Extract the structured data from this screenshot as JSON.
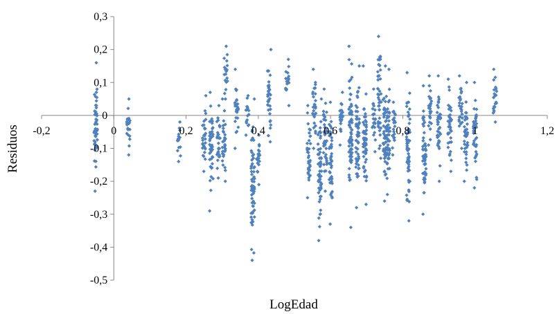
{
  "chart_data": {
    "type": "scatter",
    "title": "",
    "xlabel": "LogEdad",
    "ylabel": "Residuos",
    "xlim": [
      -0.2,
      1.2
    ],
    "ylim": [
      -0.5,
      0.3
    ],
    "x_ticks": [
      -0.2,
      0,
      0.2,
      0.4,
      0.6,
      0.8,
      1,
      1.2
    ],
    "x_tick_labels": [
      "-0,2",
      "0",
      "0,2",
      "0,4",
      "0,6",
      "0,8",
      "1",
      "1,2"
    ],
    "y_ticks": [
      0.3,
      0.2,
      0.1,
      0,
      -0.1,
      -0.2,
      -0.3,
      -0.4,
      -0.5
    ],
    "y_tick_labels": [
      "0,3",
      "0,2",
      "0,1",
      "0",
      "-0,1",
      "-0,2",
      "-0,3",
      "-0,4",
      "-0,5"
    ],
    "grid": false,
    "legend": "none",
    "marker": "diamond",
    "marker_color": "#4F81BD",
    "clusters": [
      {
        "x": -0.05,
        "ymin": -0.23,
        "ymax": 0.16
      },
      {
        "x": 0.04,
        "ymin": -0.12,
        "ymax": 0.05
      },
      {
        "x": 0.18,
        "ymin": -0.14,
        "ymax": -0.02
      },
      {
        "x": 0.25,
        "ymin": -0.17,
        "ymax": 0.06
      },
      {
        "x": 0.27,
        "ymin": -0.29,
        "ymax": 0.07
      },
      {
        "x": 0.29,
        "ymin": -0.19,
        "ymax": 0.03
      },
      {
        "x": 0.305,
        "ymin": -0.2,
        "ymax": 0.05
      },
      {
        "x": 0.31,
        "ymin": 0.05,
        "ymax": 0.21
      },
      {
        "x": 0.34,
        "ymin": -0.1,
        "ymax": 0.14
      },
      {
        "x": 0.37,
        "ymin": -0.06,
        "ymax": 0.06
      },
      {
        "x": 0.385,
        "ymin": -0.44,
        "ymax": 0.05
      },
      {
        "x": 0.4,
        "ymin": -0.21,
        "ymax": -0.06
      },
      {
        "x": 0.43,
        "ymin": -0.08,
        "ymax": 0.2
      },
      {
        "x": 0.48,
        "ymin": 0.03,
        "ymax": 0.17
      },
      {
        "x": 0.54,
        "ymin": -0.25,
        "ymax": 0.03
      },
      {
        "x": 0.555,
        "ymin": -0.1,
        "ymax": 0.14
      },
      {
        "x": 0.57,
        "ymin": -0.38,
        "ymax": 0.05
      },
      {
        "x": 0.585,
        "ymin": -0.23,
        "ymax": 0.08
      },
      {
        "x": 0.6,
        "ymin": -0.33,
        "ymax": 0.04
      },
      {
        "x": 0.63,
        "ymin": -0.09,
        "ymax": 0.07
      },
      {
        "x": 0.655,
        "ymin": -0.34,
        "ymax": 0.21
      },
      {
        "x": 0.675,
        "ymin": -0.28,
        "ymax": 0.15
      },
      {
        "x": 0.695,
        "ymin": -0.27,
        "ymax": 0.15
      },
      {
        "x": 0.72,
        "ymin": -0.11,
        "ymax": 0.08
      },
      {
        "x": 0.735,
        "ymin": -0.13,
        "ymax": 0.24
      },
      {
        "x": 0.75,
        "ymin": -0.26,
        "ymax": 0.15
      },
      {
        "x": 0.76,
        "ymin": -0.24,
        "ymax": 0.14
      },
      {
        "x": 0.775,
        "ymin": -0.12,
        "ymax": 0.04
      },
      {
        "x": 0.815,
        "ymin": -0.32,
        "ymax": 0.13
      },
      {
        "x": 0.86,
        "ymin": -0.3,
        "ymax": 0.09
      },
      {
        "x": 0.875,
        "ymin": -0.09,
        "ymax": 0.12
      },
      {
        "x": 0.9,
        "ymin": -0.2,
        "ymax": 0.12
      },
      {
        "x": 0.93,
        "ymin": -0.17,
        "ymax": 0.11
      },
      {
        "x": 0.96,
        "ymin": -0.1,
        "ymax": 0.12
      },
      {
        "x": 0.975,
        "ymin": -0.2,
        "ymax": 0.1
      },
      {
        "x": 1.0,
        "ymin": -0.22,
        "ymax": 0.1
      },
      {
        "x": 1.055,
        "ymin": -0.02,
        "ymax": 0.14
      }
    ]
  }
}
